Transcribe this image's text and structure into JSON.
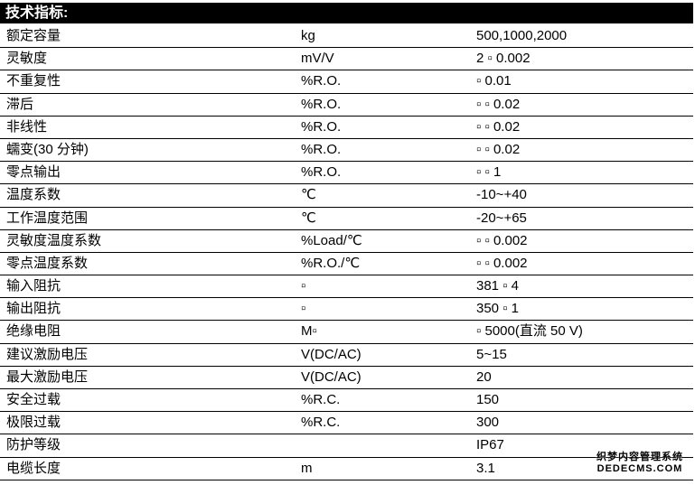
{
  "title": "技术指标:",
  "rows": [
    [
      "额定容量",
      "kg",
      "500,1000,2000"
    ],
    [
      "灵敏度",
      "mV/V",
      "2 ▫ 0.002"
    ],
    [
      "不重复性",
      "%R.O.",
      "▫ 0.01"
    ],
    [
      "滞后",
      "%R.O.",
      "▫ ▫ 0.02"
    ],
    [
      "非线性",
      "%R.O.",
      "▫ ▫ 0.02"
    ],
    [
      "蠕变(30 分钟)",
      "%R.O.",
      "▫ ▫ 0.02"
    ],
    [
      "零点输出",
      "%R.O.",
      "▫ ▫ 1"
    ],
    [
      "温度系数",
      "℃",
      "-10~+40"
    ],
    [
      "工作温度范围",
      "℃",
      "-20~+65"
    ],
    [
      "灵敏度温度系数",
      "%Load/℃",
      "▫ ▫ 0.002"
    ],
    [
      "零点温度系数",
      "%R.O./℃",
      "▫ ▫ 0.002"
    ],
    [
      "输入阻抗",
      "▫",
      "381 ▫ 4"
    ],
    [
      "输出阻抗",
      "▫",
      "350 ▫ 1"
    ],
    [
      "绝缘电阻",
      "M▫",
      "▫ 5000(直流 50 V)"
    ],
    [
      "建议激励电压",
      "V(DC/AC)",
      "5~15"
    ],
    [
      "最大激励电压",
      "V(DC/AC)",
      "20"
    ],
    [
      "安全过载",
      "%R.C.",
      "150"
    ],
    [
      "极限过载",
      "%R.C.",
      "300"
    ],
    [
      "防护等级",
      "",
      "IP67"
    ],
    [
      "电缆长度",
      "m",
      "3.1"
    ]
  ],
  "watermark": {
    "line1": "织梦内容管理系统",
    "line2": "DEDECMS.COM"
  }
}
